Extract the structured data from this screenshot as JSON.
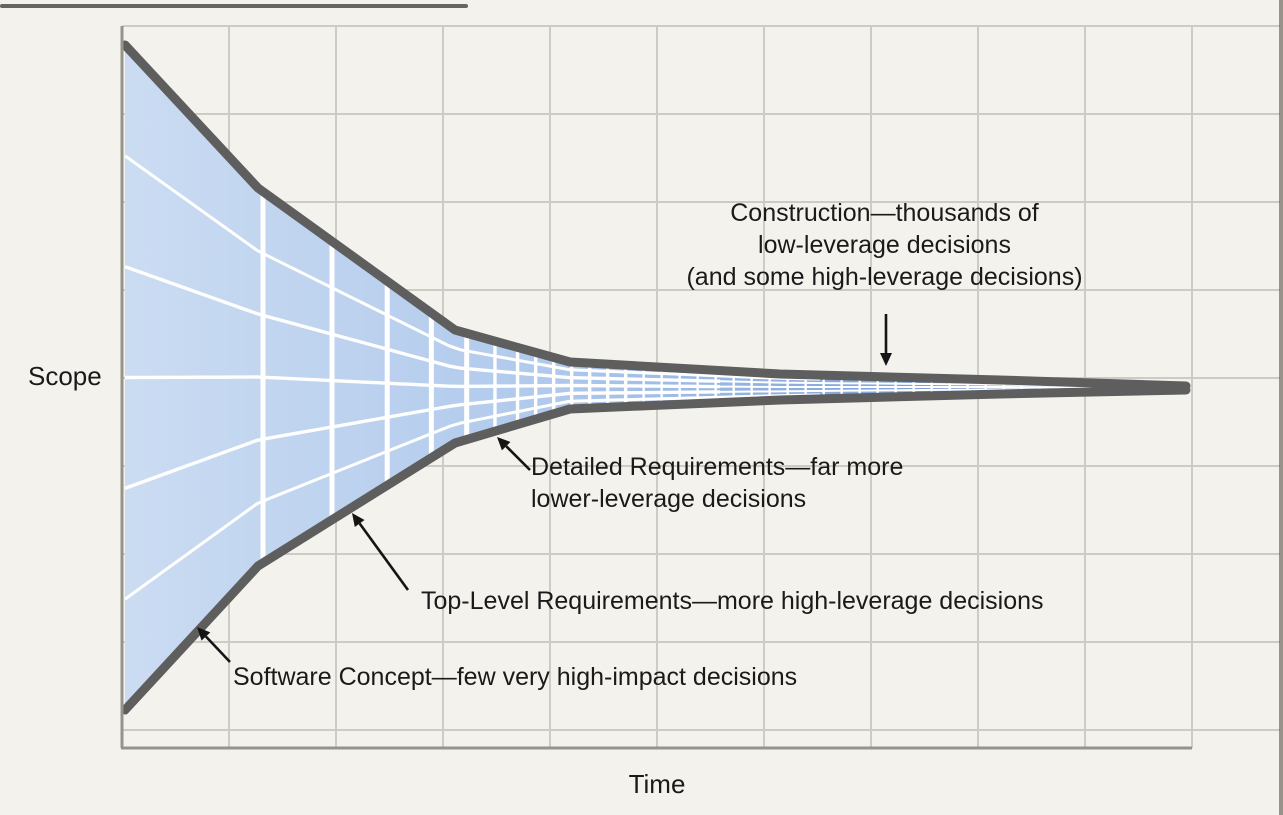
{
  "diagram": {
    "y_axis_label": "Scope",
    "x_axis_label": "Time",
    "annotations": {
      "construction": {
        "lines": [
          "Construction—thousands of",
          "low-leverage decisions",
          "(and some high-leverage decisions)"
        ]
      },
      "detailed_requirements": {
        "lines": [
          "Detailed Requirements—far more",
          "lower-leverage decisions"
        ]
      },
      "top_level_requirements": {
        "label": "Top-Level Requirements—more high-leverage decisions"
      },
      "software_concept": {
        "label": "Software Concept—few very high-impact decisions"
      }
    },
    "colors": {
      "background": "#f3f2ec",
      "grid_line": "#ccccc4",
      "axis": "#94948c",
      "funnel_outline": "#5e5e5e",
      "funnel_fill_left": "#cbdcf2",
      "funnel_fill_mid": "#b0c9ec",
      "funnel_fill_mid2": "#7fa3da",
      "funnel_fill_right": "#4873bd",
      "inner_grid": "#ffffff",
      "annotation_text": "#1a1a1a",
      "arrow": "#151515"
    }
  }
}
